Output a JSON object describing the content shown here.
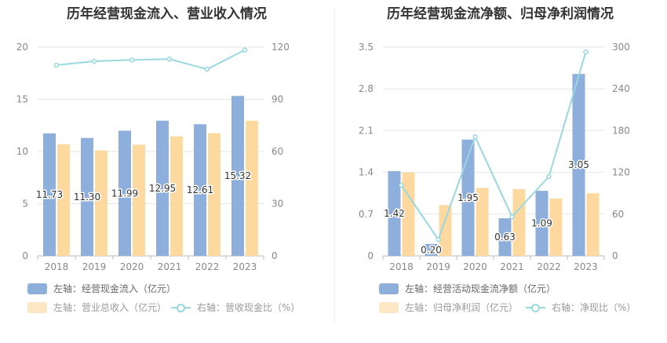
{
  "chart_data": [
    {
      "type": "bar",
      "title": "历年经营现金流入、营业收入情况",
      "categories": [
        "2018",
        "2019",
        "2020",
        "2021",
        "2022",
        "2023"
      ],
      "series": [
        {
          "name": "左轴：经营现金流入（亿元）",
          "axis": "left",
          "kind": "bar",
          "color": "#8eaedc",
          "values": [
            11.73,
            11.3,
            11.99,
            12.95,
            12.61,
            15.32
          ],
          "labels": [
            "11.73",
            "11.30",
            "11.99",
            "12.95",
            "12.61",
            "15.32"
          ]
        },
        {
          "name": "左轴：营业总收入（亿元）",
          "axis": "left",
          "kind": "bar",
          "color": "#fdd99f",
          "values": [
            10.7,
            10.1,
            10.65,
            11.45,
            11.75,
            12.95
          ]
        },
        {
          "name": "右轴：营收现金比（%）",
          "axis": "right",
          "kind": "line",
          "color": "#9ad8df",
          "values": [
            109.6,
            111.9,
            112.6,
            113.1,
            107.3,
            118.3
          ]
        }
      ],
      "left_axis": {
        "ylim": [
          0,
          20
        ],
        "ticks": [
          "0",
          "5",
          "10",
          "15",
          "20"
        ]
      },
      "right_axis": {
        "ylim": [
          0,
          120
        ],
        "ticks": [
          "0",
          "30",
          "60",
          "90",
          "120"
        ]
      },
      "grid": true,
      "legend_position": "bottom"
    },
    {
      "type": "bar",
      "title": "历年经营现金流净额、归母净利润情况",
      "categories": [
        "2018",
        "2019",
        "2020",
        "2021",
        "2022",
        "2023"
      ],
      "series": [
        {
          "name": "左轴：经营活动现金流净额（亿元）",
          "axis": "left",
          "kind": "bar",
          "color": "#8eaedc",
          "values": [
            1.42,
            0.2,
            1.95,
            0.63,
            1.09,
            3.05
          ],
          "labels": [
            "1.42",
            "0.20",
            "1.95",
            "0.63",
            "1.09",
            "3.05"
          ]
        },
        {
          "name": "左轴：归母净利润（亿元）",
          "axis": "left",
          "kind": "bar",
          "color": "#fdd99f",
          "values": [
            1.4,
            0.85,
            1.14,
            1.12,
            0.96,
            1.05
          ]
        },
        {
          "name": "右轴：净现比（%）",
          "axis": "right",
          "kind": "line",
          "color": "#9ad8df",
          "values": [
            101.5,
            23.5,
            171.2,
            56.3,
            114.0,
            293.0
          ]
        }
      ],
      "left_axis": {
        "ylim": [
          0,
          3.5
        ],
        "ticks": [
          "0",
          "0.7",
          "1.4",
          "2.1",
          "2.8",
          "3.5"
        ]
      },
      "right_axis": {
        "ylim": [
          0,
          300
        ],
        "ticks": [
          "0",
          "60",
          "120",
          "180",
          "240",
          "300"
        ]
      },
      "grid": true,
      "legend_position": "bottom"
    }
  ]
}
